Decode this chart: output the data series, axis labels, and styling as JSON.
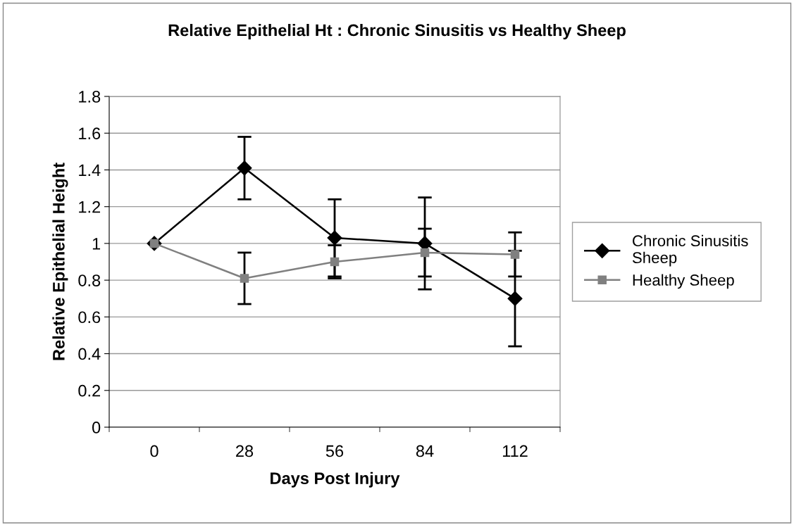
{
  "chart_data": {
    "type": "line",
    "title": "Relative Epithelial Ht : Chronic Sinusitis vs Healthy Sheep",
    "xlabel": "Days Post Injury",
    "ylabel": "Relative Epithelial Height",
    "categories": [
      "0",
      "28",
      "56",
      "84",
      "112"
    ],
    "series": [
      {
        "name": "Chronic Sinusitis Sheep",
        "color": "#000000",
        "marker": "diamond",
        "values": [
          1.0,
          1.41,
          1.03,
          1.0,
          0.7
        ],
        "errors": [
          null,
          0.17,
          0.21,
          0.25,
          0.26
        ]
      },
      {
        "name": "Healthy Sheep",
        "color": "#808080",
        "marker": "square",
        "values": [
          1.0,
          0.81,
          0.9,
          0.95,
          0.94
        ],
        "errors": [
          null,
          0.14,
          0.09,
          0.13,
          0.12
        ]
      }
    ],
    "ylim": [
      0,
      1.8
    ],
    "yticks": [
      0,
      0.2,
      0.4,
      0.6,
      0.8,
      1,
      1.2,
      1.4,
      1.6,
      1.8
    ],
    "grid": "y",
    "legend": "right",
    "line_style": "solid"
  }
}
